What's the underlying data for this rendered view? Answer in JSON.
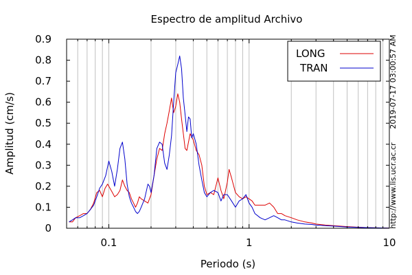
{
  "chart_data": {
    "type": "line",
    "title": "Espectro de amplitud Archivo",
    "xlabel": "Periodo (s)",
    "ylabel": "Amplitud (cm/s)",
    "xscale": "log",
    "xlim": [
      0.05,
      10
    ],
    "ylim": [
      0,
      0.9
    ],
    "grid": "vertical-minor-log",
    "legend_position": "top-right",
    "x_ticks": [
      {
        "value": 0.1,
        "label": "0.1"
      },
      {
        "value": 1,
        "label": "1"
      },
      {
        "value": 10,
        "label": "10"
      }
    ],
    "y_ticks": [
      {
        "value": 0,
        "label": "0"
      },
      {
        "value": 0.1,
        "label": "0.1"
      },
      {
        "value": 0.2,
        "label": "0.2"
      },
      {
        "value": 0.3,
        "label": "0.3"
      },
      {
        "value": 0.4,
        "label": "0.4"
      },
      {
        "value": 0.5,
        "label": "0.5"
      },
      {
        "value": 0.6,
        "label": "0.6"
      },
      {
        "value": 0.7,
        "label": "0.7"
      },
      {
        "value": 0.8,
        "label": "0.8"
      },
      {
        "value": 0.9,
        "label": "0.9"
      }
    ],
    "series": [
      {
        "name": "LONG",
        "color": "#dd0000",
        "points": [
          [
            0.052,
            0.03
          ],
          [
            0.055,
            0.03
          ],
          [
            0.058,
            0.05
          ],
          [
            0.062,
            0.06
          ],
          [
            0.066,
            0.07
          ],
          [
            0.07,
            0.07
          ],
          [
            0.074,
            0.09
          ],
          [
            0.078,
            0.12
          ],
          [
            0.082,
            0.17
          ],
          [
            0.086,
            0.18
          ],
          [
            0.09,
            0.15
          ],
          [
            0.094,
            0.19
          ],
          [
            0.098,
            0.21
          ],
          [
            0.102,
            0.19
          ],
          [
            0.106,
            0.17
          ],
          [
            0.11,
            0.15
          ],
          [
            0.115,
            0.16
          ],
          [
            0.12,
            0.18
          ],
          [
            0.125,
            0.23
          ],
          [
            0.13,
            0.2
          ],
          [
            0.135,
            0.18
          ],
          [
            0.14,
            0.17
          ],
          [
            0.145,
            0.14
          ],
          [
            0.15,
            0.12
          ],
          [
            0.155,
            0.1
          ],
          [
            0.16,
            0.12
          ],
          [
            0.165,
            0.15
          ],
          [
            0.17,
            0.14
          ],
          [
            0.18,
            0.13
          ],
          [
            0.19,
            0.12
          ],
          [
            0.195,
            0.14
          ],
          [
            0.2,
            0.16
          ],
          [
            0.21,
            0.25
          ],
          [
            0.22,
            0.33
          ],
          [
            0.23,
            0.38
          ],
          [
            0.24,
            0.37
          ],
          [
            0.25,
            0.45
          ],
          [
            0.26,
            0.5
          ],
          [
            0.27,
            0.56
          ],
          [
            0.28,
            0.62
          ],
          [
            0.29,
            0.55
          ],
          [
            0.3,
            0.58
          ],
          [
            0.31,
            0.64
          ],
          [
            0.32,
            0.6
          ],
          [
            0.33,
            0.52
          ],
          [
            0.34,
            0.45
          ],
          [
            0.35,
            0.38
          ],
          [
            0.36,
            0.37
          ],
          [
            0.38,
            0.45
          ],
          [
            0.4,
            0.42
          ],
          [
            0.42,
            0.37
          ],
          [
            0.44,
            0.35
          ],
          [
            0.46,
            0.3
          ],
          [
            0.48,
            0.2
          ],
          [
            0.5,
            0.16
          ],
          [
            0.53,
            0.17
          ],
          [
            0.56,
            0.16
          ],
          [
            0.6,
            0.24
          ],
          [
            0.63,
            0.18
          ],
          [
            0.66,
            0.14
          ],
          [
            0.7,
            0.22
          ],
          [
            0.72,
            0.28
          ],
          [
            0.75,
            0.24
          ],
          [
            0.8,
            0.17
          ],
          [
            0.85,
            0.15
          ],
          [
            0.9,
            0.14
          ],
          [
            0.95,
            0.15
          ],
          [
            1.0,
            0.14
          ],
          [
            1.05,
            0.13
          ],
          [
            1.1,
            0.11
          ],
          [
            1.2,
            0.11
          ],
          [
            1.3,
            0.11
          ],
          [
            1.4,
            0.12
          ],
          [
            1.5,
            0.1
          ],
          [
            1.6,
            0.07
          ],
          [
            1.7,
            0.07
          ],
          [
            1.8,
            0.06
          ],
          [
            2.0,
            0.05
          ],
          [
            2.2,
            0.04
          ],
          [
            2.5,
            0.03
          ],
          [
            2.8,
            0.025
          ],
          [
            3.0,
            0.02
          ],
          [
            3.5,
            0.015
          ],
          [
            4.0,
            0.012
          ],
          [
            5.0,
            0.008
          ],
          [
            6.0,
            0.005
          ],
          [
            7.0,
            0.003
          ],
          [
            8.0,
            0.002
          ],
          [
            10.0,
            0.001
          ]
        ]
      },
      {
        "name": "TRAN",
        "color": "#0000cc",
        "points": [
          [
            0.052,
            0.03
          ],
          [
            0.055,
            0.04
          ],
          [
            0.058,
            0.05
          ],
          [
            0.062,
            0.05
          ],
          [
            0.066,
            0.06
          ],
          [
            0.07,
            0.07
          ],
          [
            0.074,
            0.09
          ],
          [
            0.078,
            0.11
          ],
          [
            0.082,
            0.15
          ],
          [
            0.086,
            0.19
          ],
          [
            0.09,
            0.21
          ],
          [
            0.095,
            0.25
          ],
          [
            0.1,
            0.32
          ],
          [
            0.105,
            0.27
          ],
          [
            0.11,
            0.2
          ],
          [
            0.115,
            0.28
          ],
          [
            0.12,
            0.38
          ],
          [
            0.125,
            0.41
          ],
          [
            0.13,
            0.33
          ],
          [
            0.135,
            0.21
          ],
          [
            0.14,
            0.15
          ],
          [
            0.145,
            0.12
          ],
          [
            0.15,
            0.1
          ],
          [
            0.155,
            0.08
          ],
          [
            0.16,
            0.07
          ],
          [
            0.165,
            0.08
          ],
          [
            0.17,
            0.1
          ],
          [
            0.18,
            0.14
          ],
          [
            0.19,
            0.21
          ],
          [
            0.195,
            0.2
          ],
          [
            0.2,
            0.17
          ],
          [
            0.21,
            0.25
          ],
          [
            0.22,
            0.38
          ],
          [
            0.23,
            0.41
          ],
          [
            0.24,
            0.4
          ],
          [
            0.25,
            0.31
          ],
          [
            0.26,
            0.28
          ],
          [
            0.27,
            0.35
          ],
          [
            0.28,
            0.44
          ],
          [
            0.29,
            0.6
          ],
          [
            0.3,
            0.74
          ],
          [
            0.31,
            0.78
          ],
          [
            0.32,
            0.82
          ],
          [
            0.33,
            0.76
          ],
          [
            0.34,
            0.62
          ],
          [
            0.35,
            0.54
          ],
          [
            0.36,
            0.46
          ],
          [
            0.37,
            0.53
          ],
          [
            0.38,
            0.52
          ],
          [
            0.39,
            0.43
          ],
          [
            0.4,
            0.45
          ],
          [
            0.42,
            0.4
          ],
          [
            0.44,
            0.3
          ],
          [
            0.46,
            0.23
          ],
          [
            0.48,
            0.17
          ],
          [
            0.5,
            0.15
          ],
          [
            0.53,
            0.17
          ],
          [
            0.56,
            0.18
          ],
          [
            0.6,
            0.17
          ],
          [
            0.63,
            0.13
          ],
          [
            0.66,
            0.16
          ],
          [
            0.7,
            0.16
          ],
          [
            0.75,
            0.13
          ],
          [
            0.8,
            0.1
          ],
          [
            0.85,
            0.13
          ],
          [
            0.9,
            0.14
          ],
          [
            0.95,
            0.16
          ],
          [
            1.0,
            0.12
          ],
          [
            1.05,
            0.1
          ],
          [
            1.1,
            0.07
          ],
          [
            1.2,
            0.05
          ],
          [
            1.3,
            0.04
          ],
          [
            1.4,
            0.05
          ],
          [
            1.5,
            0.06
          ],
          [
            1.6,
            0.05
          ],
          [
            1.7,
            0.04
          ],
          [
            1.8,
            0.04
          ],
          [
            2.0,
            0.03
          ],
          [
            2.2,
            0.025
          ],
          [
            2.5,
            0.02
          ],
          [
            2.8,
            0.018
          ],
          [
            3.0,
            0.015
          ],
          [
            3.5,
            0.012
          ],
          [
            4.0,
            0.01
          ],
          [
            5.0,
            0.006
          ],
          [
            6.0,
            0.004
          ],
          [
            7.0,
            0.003
          ],
          [
            8.0,
            0.002
          ],
          [
            10.0,
            0.001
          ]
        ]
      }
    ]
  },
  "side_texts": {
    "timestamp": "2019-07-17 03:00:57 AM",
    "url": "http://www.lis.ucr.ac.cr"
  }
}
